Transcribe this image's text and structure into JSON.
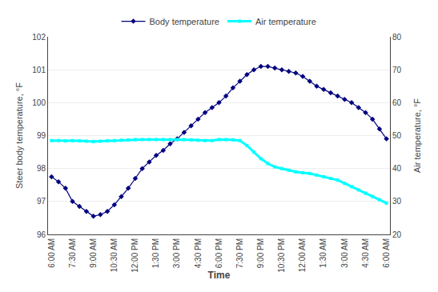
{
  "chart_data": {
    "type": "line",
    "xlabel": "Time",
    "ylabel": "Steer body temperature, °F",
    "y2label": "Air temperature, °F",
    "categories": [
      "6:00 AM",
      null,
      null,
      "7:30 AM",
      null,
      null,
      "9:00 AM",
      null,
      null,
      "10:30 AM",
      null,
      null,
      "12:00 PM",
      null,
      null,
      "1:30 PM",
      null,
      null,
      "3:00 PM",
      null,
      null,
      "4:30 PM",
      null,
      null,
      "6:00 PM",
      null,
      null,
      "7:30 PM",
      null,
      null,
      "9:00 PM",
      null,
      null,
      "10:30 PM",
      null,
      null,
      "12:00 AM",
      null,
      null,
      "1:30 AM",
      null,
      null,
      "3:00 AM",
      null,
      null,
      "4:30 AM",
      null,
      null,
      "6:00 AM"
    ],
    "series": [
      {
        "name": "Body temperature",
        "color": "#000080",
        "marker": "diamond",
        "line_style": "solid",
        "values": [
          97.75,
          97.6,
          97.4,
          97.0,
          96.85,
          96.7,
          96.55,
          96.6,
          96.7,
          96.9,
          97.15,
          97.4,
          97.7,
          98.0,
          98.2,
          98.4,
          98.55,
          98.75,
          98.9,
          99.1,
          99.3,
          99.5,
          99.7,
          99.85,
          100.0,
          100.2,
          100.45,
          100.65,
          100.85,
          101.0,
          101.1,
          101.1,
          101.05,
          101.0,
          100.95,
          100.9,
          100.8,
          100.65,
          100.5,
          100.4,
          100.3,
          100.2,
          100.1,
          100.0,
          99.85,
          99.7,
          99.5,
          99.2,
          98.9
        ]
      },
      {
        "name": "Air temperature",
        "color": "#00FFFF",
        "marker": "square",
        "line_style": "solid",
        "axis": "y2",
        "values": [
          48.5,
          48.5,
          48.4,
          48.5,
          48.4,
          48.3,
          48.2,
          48.3,
          48.4,
          48.5,
          48.6,
          48.7,
          48.8,
          48.8,
          48.8,
          48.8,
          48.8,
          48.8,
          48.8,
          48.8,
          48.7,
          48.6,
          48.5,
          48.5,
          48.8,
          48.8,
          48.7,
          48.5,
          47.0,
          45.0,
          43.0,
          41.5,
          40.5,
          40.0,
          39.5,
          39.0,
          38.7,
          38.5,
          38.0,
          37.5,
          37.0,
          36.5,
          35.5,
          34.5,
          33.5,
          32.5,
          31.5,
          30.5,
          29.5
        ]
      }
    ],
    "ylim": [
      96,
      102
    ],
    "yticks": [
      96,
      97,
      98,
      99,
      100,
      101,
      102
    ],
    "y2lim": [
      20,
      80
    ],
    "y2ticks": [
      20,
      30,
      40,
      50,
      60,
      70,
      80
    ],
    "grid": true,
    "legend": "top"
  }
}
